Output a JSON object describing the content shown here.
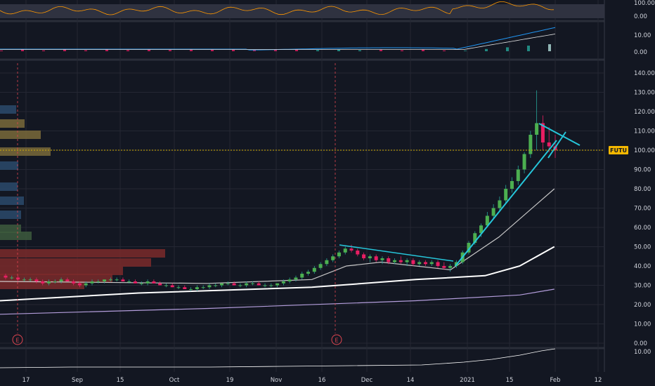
{
  "chart_data": {
    "type": "candlestick",
    "ticker": "FUTU",
    "last_price": 100,
    "price_axis": {
      "ticks": [
        "140.00",
        "130.00",
        "120.00",
        "110.00",
        "100.00",
        "90.00",
        "80.00",
        "70.00",
        "60.00",
        "50.00",
        "40.00",
        "30.00",
        "20.00",
        "10.00",
        "0.00"
      ],
      "range": [
        0,
        145
      ]
    },
    "x_axis_labels": [
      "17",
      "Sep",
      "15",
      "Oct",
      "19",
      "Nov",
      "16",
      "Dec",
      "14",
      "2021",
      "15",
      "Feb",
      "12"
    ],
    "earnings_marker": "E",
    "rsi_panel": {
      "ticks": [
        "100.00",
        "0.00"
      ]
    },
    "macd_panel": {
      "ticks": [
        "10.00",
        "0.00"
      ]
    },
    "volume_panel": {
      "ticks": [
        "10.00"
      ]
    },
    "candles": [
      [
        35,
        36,
        33,
        34
      ],
      [
        34,
        35,
        33,
        34
      ],
      [
        34,
        35,
        32,
        33
      ],
      [
        33,
        34,
        32,
        33
      ],
      [
        33,
        34,
        32,
        33
      ],
      [
        33,
        34,
        31,
        32
      ],
      [
        32,
        33,
        30,
        31
      ],
      [
        31,
        33,
        30,
        32
      ],
      [
        32,
        33,
        31,
        32
      ],
      [
        32,
        34,
        31,
        33
      ],
      [
        33,
        34,
        32,
        32
      ],
      [
        32,
        33,
        30,
        31
      ],
      [
        31,
        32,
        29,
        30
      ],
      [
        30,
        32,
        29,
        31
      ],
      [
        31,
        33,
        30,
        32
      ],
      [
        32,
        33,
        31,
        32
      ],
      [
        32,
        33,
        31,
        33
      ],
      [
        33,
        34,
        32,
        33
      ],
      [
        33,
        34,
        32,
        33
      ],
      [
        33,
        34,
        32,
        32
      ],
      [
        32,
        33,
        31,
        32
      ],
      [
        32,
        33,
        31,
        31
      ],
      [
        31,
        32,
        30,
        31
      ],
      [
        31,
        33,
        30,
        32
      ],
      [
        32,
        33,
        31,
        31
      ],
      [
        31,
        32,
        30,
        30
      ],
      [
        30,
        31,
        29,
        30
      ],
      [
        30,
        31,
        29,
        29
      ],
      [
        29,
        30,
        28,
        29
      ],
      [
        29,
        30,
        28,
        28
      ],
      [
        28,
        29,
        27,
        28
      ],
      [
        28,
        30,
        27,
        29
      ],
      [
        29,
        30,
        28,
        29
      ],
      [
        29,
        31,
        28,
        30
      ],
      [
        30,
        31,
        29,
        30
      ],
      [
        30,
        31,
        29,
        31
      ],
      [
        31,
        32,
        30,
        31
      ],
      [
        31,
        32,
        30,
        30
      ],
      [
        30,
        31,
        29,
        30
      ],
      [
        30,
        32,
        29,
        31
      ],
      [
        31,
        32,
        30,
        31
      ],
      [
        31,
        32,
        30,
        30
      ],
      [
        30,
        31,
        29,
        30
      ],
      [
        30,
        31,
        29,
        30
      ],
      [
        30,
        31,
        29,
        31
      ],
      [
        31,
        33,
        30,
        32
      ],
      [
        32,
        34,
        31,
        33
      ],
      [
        33,
        35,
        32,
        34
      ],
      [
        34,
        37,
        33,
        36
      ],
      [
        36,
        38,
        35,
        37
      ],
      [
        37,
        40,
        36,
        39
      ],
      [
        39,
        42,
        38,
        41
      ],
      [
        41,
        44,
        40,
        43
      ],
      [
        43,
        46,
        42,
        45
      ],
      [
        45,
        48,
        44,
        47
      ],
      [
        47,
        50,
        46,
        49
      ],
      [
        49,
        51,
        47,
        48
      ],
      [
        48,
        49,
        45,
        46
      ],
      [
        46,
        47,
        43,
        44
      ],
      [
        44,
        46,
        42,
        45
      ],
      [
        45,
        46,
        42,
        43
      ],
      [
        43,
        45,
        41,
        44
      ],
      [
        44,
        45,
        41,
        42
      ],
      [
        42,
        44,
        41,
        43
      ],
      [
        43,
        45,
        41,
        42
      ],
      [
        42,
        44,
        40,
        43
      ],
      [
        43,
        44,
        40,
        41
      ],
      [
        41,
        43,
        40,
        42
      ],
      [
        42,
        43,
        40,
        41
      ],
      [
        41,
        43,
        40,
        42
      ],
      [
        42,
        43,
        39,
        40
      ],
      [
        40,
        42,
        38,
        39
      ],
      [
        39,
        41,
        37,
        40
      ],
      [
        40,
        43,
        39,
        42
      ],
      [
        42,
        48,
        41,
        47
      ],
      [
        47,
        53,
        46,
        52
      ],
      [
        52,
        58,
        51,
        57
      ],
      [
        57,
        62,
        55,
        61
      ],
      [
        61,
        68,
        60,
        66
      ],
      [
        66,
        72,
        64,
        70
      ],
      [
        70,
        76,
        68,
        74
      ],
      [
        74,
        82,
        72,
        80
      ],
      [
        80,
        86,
        78,
        84
      ],
      [
        84,
        92,
        82,
        90
      ],
      [
        90,
        99,
        88,
        98
      ],
      [
        98,
        110,
        96,
        108
      ],
      [
        108,
        131,
        100,
        114
      ],
      [
        114,
        118,
        100,
        104
      ],
      [
        104,
        112,
        99,
        102
      ],
      [
        102,
        108,
        96,
        100
      ]
    ],
    "moving_averages": [
      {
        "color": "#ffffff",
        "points": [
          [
            0,
            22
          ],
          [
            0.2,
            26
          ],
          [
            0.45,
            29
          ],
          [
            0.6,
            33
          ],
          [
            0.7,
            35
          ],
          [
            0.75,
            40
          ],
          [
            0.8,
            50
          ]
        ]
      },
      {
        "color": "#b39ddb",
        "points": [
          [
            0,
            15
          ],
          [
            0.3,
            18
          ],
          [
            0.6,
            22
          ],
          [
            0.75,
            25
          ],
          [
            0.8,
            28
          ]
        ]
      },
      {
        "color": "#c8c8c8",
        "points": [
          [
            0,
            32
          ],
          [
            0.3,
            31
          ],
          [
            0.45,
            33
          ],
          [
            0.5,
            40
          ],
          [
            0.55,
            42
          ],
          [
            0.65,
            38
          ],
          [
            0.72,
            55
          ],
          [
            0.8,
            80
          ]
        ]
      }
    ]
  }
}
